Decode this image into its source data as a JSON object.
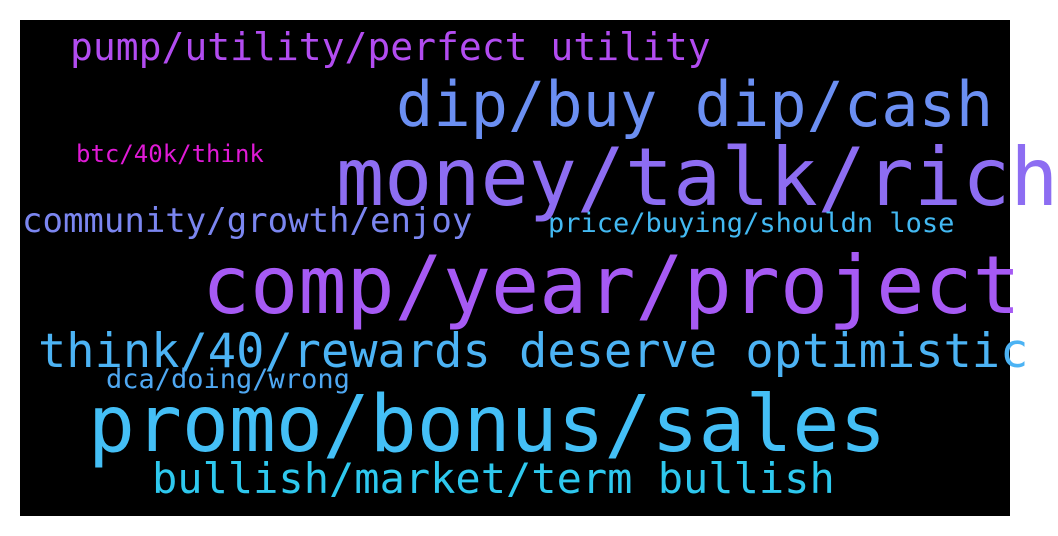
{
  "words": {
    "pump": {
      "text": "pump/utility/perfect utility",
      "color": "#b24cf0"
    },
    "dip": {
      "text": "dip/buy dip/cash",
      "color": "#6b8ff2"
    },
    "btc": {
      "text": "btc/40k/think",
      "color": "#e01ad6"
    },
    "money": {
      "text": "money/talk/rich",
      "color": "#8d6df2"
    },
    "community": {
      "text": "community/growth/enjoy",
      "color": "#7b86f0"
    },
    "price": {
      "text": "price/buying/shouldn lose",
      "color": "#43b9f2"
    },
    "comp": {
      "text": "comp/year/project",
      "color": "#a65af4"
    },
    "think": {
      "text": "think/40/rewards deserve optimistic",
      "color": "#4cb3f4"
    },
    "dca": {
      "text": "dca/doing/wrong",
      "color": "#4fa8f2"
    },
    "promo": {
      "text": "promo/bonus/sales",
      "color": "#44bff6"
    },
    "bullish": {
      "text": "bullish/market/term bullish",
      "color": "#2ec8ee"
    }
  }
}
